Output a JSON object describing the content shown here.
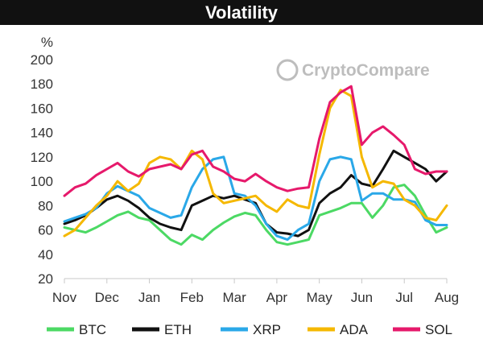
{
  "chart_data": {
    "type": "line",
    "title": "Volatility",
    "ylabel": "%",
    "xlabel": "",
    "ylim": [
      20,
      200
    ],
    "yticks": [
      20,
      40,
      60,
      80,
      100,
      120,
      140,
      160,
      180,
      200
    ],
    "xlim": [
      0,
      9
    ],
    "xtick_positions": [
      0,
      1,
      2,
      3,
      4,
      5,
      6,
      7,
      8,
      9
    ],
    "xtick_labels": [
      "Nov",
      "Dec",
      "Jan",
      "Feb",
      "Mar",
      "Apr",
      "May",
      "Jun",
      "Jul",
      "Aug"
    ],
    "watermark": "CryptoCompare",
    "x": [
      0,
      0.25,
      0.5,
      0.75,
      1,
      1.25,
      1.5,
      1.75,
      2,
      2.25,
      2.5,
      2.75,
      3,
      3.25,
      3.5,
      3.75,
      4,
      4.25,
      4.5,
      4.75,
      5,
      5.25,
      5.5,
      5.75,
      6,
      6.25,
      6.5,
      6.75,
      7,
      7.25,
      7.5,
      7.75,
      8,
      8.25,
      8.5,
      8.75,
      9
    ],
    "series": [
      {
        "name": "BTC",
        "color": "#4cd964",
        "values": [
          62,
          60,
          58,
          62,
          67,
          72,
          75,
          70,
          68,
          60,
          52,
          48,
          56,
          52,
          60,
          66,
          71,
          74,
          72,
          60,
          50,
          48,
          50,
          52,
          72,
          75,
          78,
          82,
          82,
          70,
          80,
          95,
          97,
          88,
          72,
          58,
          62
        ]
      },
      {
        "name": "ETH",
        "color": "#111111",
        "values": [
          65,
          68,
          72,
          78,
          85,
          88,
          84,
          78,
          70,
          65,
          62,
          60,
          80,
          84,
          88,
          86,
          88,
          85,
          82,
          65,
          58,
          57,
          55,
          60,
          82,
          90,
          95,
          105,
          98,
          96,
          110,
          125,
          120,
          115,
          110,
          100,
          108
        ]
      },
      {
        "name": "XRP",
        "color": "#2aa8e8",
        "values": [
          67,
          70,
          73,
          78,
          90,
          96,
          92,
          88,
          78,
          74,
          70,
          72,
          95,
          110,
          118,
          120,
          90,
          88,
          80,
          65,
          55,
          52,
          60,
          65,
          100,
          118,
          120,
          118,
          84,
          90,
          90,
          85,
          85,
          83,
          68,
          64,
          64
        ]
      },
      {
        "name": "ADA",
        "color": "#f5b800",
        "values": [
          55,
          60,
          70,
          80,
          88,
          100,
          92,
          98,
          115,
          120,
          118,
          110,
          125,
          118,
          90,
          82,
          84,
          86,
          88,
          80,
          75,
          85,
          80,
          78,
          122,
          160,
          175,
          170,
          120,
          95,
          100,
          98,
          85,
          80,
          70,
          68,
          80
        ]
      },
      {
        "name": "SOL",
        "color": "#e6196b",
        "values": [
          88,
          95,
          98,
          105,
          110,
          115,
          108,
          104,
          110,
          112,
          114,
          110,
          122,
          125,
          112,
          108,
          102,
          100,
          106,
          100,
          95,
          92,
          94,
          95,
          135,
          165,
          173,
          178,
          130,
          140,
          145,
          138,
          130,
          110,
          106,
          108,
          108
        ]
      }
    ]
  }
}
